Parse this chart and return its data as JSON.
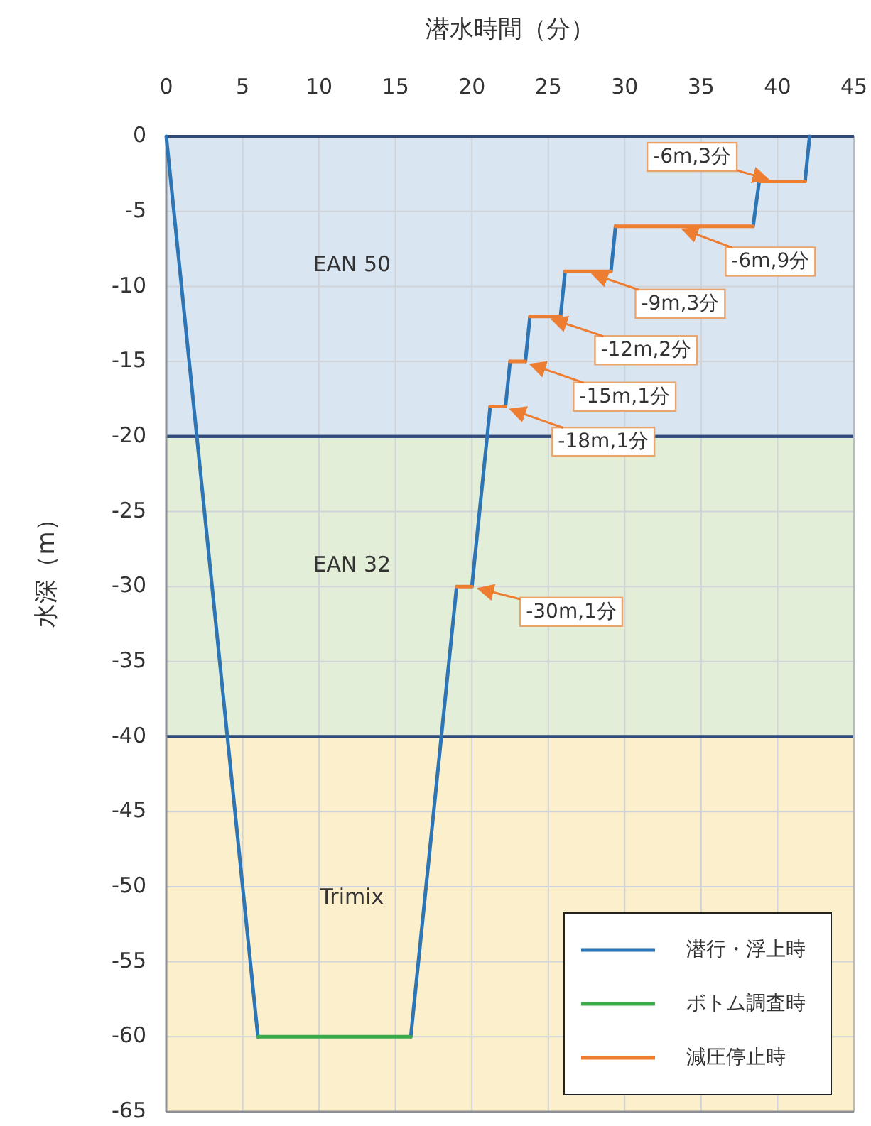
{
  "chart_data": {
    "type": "line",
    "xlabel": "潜水時間（分）",
    "ylabel": "水深（m）",
    "xlim": [
      0,
      45
    ],
    "xticks": [
      0,
      5,
      10,
      15,
      20,
      25,
      30,
      35,
      40,
      45
    ],
    "ylim": [
      -65,
      0
    ],
    "yticks": [
      0,
      -5,
      -10,
      -15,
      -20,
      -25,
      -30,
      -35,
      -40,
      -45,
      -50,
      -55,
      -60,
      -65
    ],
    "grid": true,
    "legend": "bottom right",
    "bands": [
      {
        "axis": "y",
        "from": 0,
        "to": -20,
        "label": "EAN 50",
        "color": "#dae5f2"
      },
      {
        "axis": "y",
        "from": -20,
        "to": -40,
        "label": "EAN 32",
        "color": "#e3eed8"
      },
      {
        "axis": "y",
        "from": -40,
        "to": -65,
        "label": "Trimix",
        "color": "#fcefcc"
      }
    ],
    "series": [
      {
        "name": "潜行・浮上時",
        "color": "#2e75b6",
        "x": [
          0,
          6,
          null,
          16,
          19,
          null,
          20,
          21.2,
          null,
          22.2,
          22.5,
          null,
          23.5,
          23.8,
          null,
          25.8,
          26.1,
          null,
          29.1,
          29.4,
          null,
          38.4,
          38.8,
          null,
          41.8,
          42.1
        ],
        "values": [
          0,
          -60,
          null,
          -60,
          -30,
          null,
          -30,
          -18,
          null,
          -18,
          -15,
          null,
          -15,
          -12,
          null,
          -12,
          -9,
          null,
          -9,
          -6,
          null,
          -6,
          -3,
          null,
          -3,
          0
        ]
      },
      {
        "name": "ボトム調査時",
        "color": "#3daa4a",
        "x": [
          6,
          16
        ],
        "values": [
          -60,
          -60
        ]
      },
      {
        "name": "減圧停止時",
        "color": "#ed7d31",
        "x": [
          19,
          20,
          null,
          21.2,
          22.2,
          null,
          22.5,
          23.5,
          null,
          23.8,
          25.8,
          null,
          26.1,
          29.1,
          null,
          29.4,
          38.4,
          null,
          38.8,
          41.8
        ],
        "values": [
          -30,
          -30,
          null,
          -18,
          -18,
          null,
          -15,
          -15,
          null,
          -12,
          -12,
          null,
          -9,
          -9,
          null,
          -6,
          -6,
          null,
          -3,
          -3
        ]
      }
    ],
    "annotations": [
      {
        "text": "-6m,3分",
        "x": 39.8,
        "y": -3
      },
      {
        "text": "-6m,9分",
        "x": 33.3,
        "y": -6
      },
      {
        "text": "-9m,3分",
        "x": 27.4,
        "y": -9
      },
      {
        "text": "-12m,2分",
        "x": 24.7,
        "y": -12
      },
      {
        "text": "-15m,1分",
        "x": 23.3,
        "y": -15
      },
      {
        "text": "-18m,1分",
        "x": 22,
        "y": -18
      },
      {
        "text": "-30m,1分",
        "x": 19.9,
        "y": -30
      }
    ]
  }
}
